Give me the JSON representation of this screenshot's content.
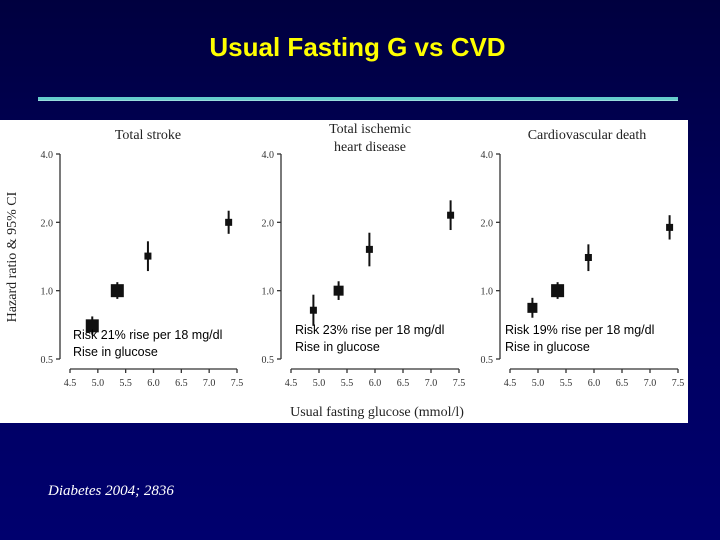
{
  "slide": {
    "title": "Usual Fasting G vs CVD",
    "citation": "Diabetes 2004; 2836",
    "title_color": "#ffff00",
    "rule_color": "#66cccc",
    "background_color": "#000066"
  },
  "chart_data": [
    {
      "type": "scatter",
      "title": "Total stroke",
      "ylabel": "Hazard ratio & 95% CI",
      "xlabel": "Usual fasting glucose (mmol/l)",
      "y_scale": "log",
      "ylim": [
        0.5,
        4.0
      ],
      "xlim": [
        4.5,
        7.5
      ],
      "x_ticks": [
        "4.5",
        "5.0",
        "5.5",
        "6.0",
        "6.5",
        "7.0",
        "7.5"
      ],
      "y_ticks": [
        "0.5",
        "1.0",
        "2.0",
        "4.0"
      ],
      "points": [
        {
          "x": 4.9,
          "y": 0.7,
          "lo": 0.64,
          "hi": 0.77,
          "size": "large"
        },
        {
          "x": 5.35,
          "y": 1.0,
          "lo": 0.92,
          "hi": 1.09,
          "size": "large"
        },
        {
          "x": 5.9,
          "y": 1.42,
          "lo": 1.22,
          "hi": 1.65,
          "size": "small"
        },
        {
          "x": 7.35,
          "y": 2.0,
          "lo": 1.78,
          "hi": 2.25,
          "size": "small"
        }
      ],
      "annotation": [
        "Risk 21% rise per 18 mg/dl",
        "Rise in glucose"
      ]
    },
    {
      "type": "scatter",
      "title": [
        "Total ischemic",
        "heart disease"
      ],
      "xlabel": "Usual fasting glucose (mmol/l)",
      "y_scale": "log",
      "ylim": [
        0.5,
        4.0
      ],
      "xlim": [
        4.5,
        7.5
      ],
      "x_ticks": [
        "4.5",
        "5.0",
        "5.5",
        "6.0",
        "6.5",
        "7.0",
        "7.5"
      ],
      "y_ticks": [
        "0.5",
        "1.0",
        "2.0",
        "4.0"
      ],
      "points": [
        {
          "x": 4.9,
          "y": 0.82,
          "lo": 0.7,
          "hi": 0.96,
          "size": "small"
        },
        {
          "x": 5.35,
          "y": 1.0,
          "lo": 0.91,
          "hi": 1.1,
          "size": "medium"
        },
        {
          "x": 5.9,
          "y": 1.52,
          "lo": 1.28,
          "hi": 1.8,
          "size": "small"
        },
        {
          "x": 7.35,
          "y": 2.15,
          "lo": 1.85,
          "hi": 2.5,
          "size": "small"
        }
      ],
      "annotation": [
        "Risk 23% rise per 18 mg/dl",
        "Rise in glucose"
      ]
    },
    {
      "type": "scatter",
      "title": "Cardiovascular death",
      "xlabel": "Usual fasting glucose (mmol/l)",
      "y_scale": "log",
      "ylim": [
        0.5,
        4.0
      ],
      "xlim": [
        4.5,
        7.5
      ],
      "x_ticks": [
        "4.5",
        "5.0",
        "5.5",
        "6.0",
        "6.5",
        "7.0",
        "7.5"
      ],
      "y_ticks": [
        "0.5",
        "1.0",
        "2.0",
        "4.0"
      ],
      "points": [
        {
          "x": 4.9,
          "y": 0.84,
          "lo": 0.76,
          "hi": 0.93,
          "size": "medium"
        },
        {
          "x": 5.35,
          "y": 1.0,
          "lo": 0.92,
          "hi": 1.09,
          "size": "large"
        },
        {
          "x": 5.9,
          "y": 1.4,
          "lo": 1.22,
          "hi": 1.6,
          "size": "small"
        },
        {
          "x": 7.35,
          "y": 1.9,
          "lo": 1.68,
          "hi": 2.15,
          "size": "small"
        }
      ],
      "annotation": [
        "Risk 19% rise per 18 mg/dl",
        "Rise in glucose"
      ]
    }
  ]
}
